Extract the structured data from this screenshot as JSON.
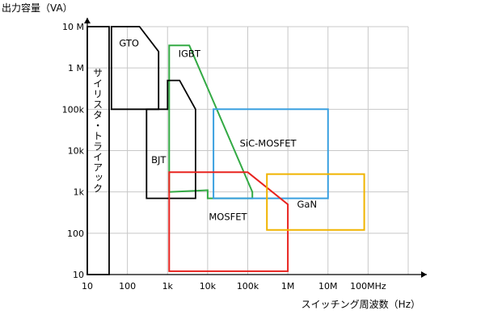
{
  "chart_data": {
    "type": "area",
    "ylabel": "出力容量（VA）",
    "xlabel": "スイッチング周波数（Hz）",
    "x_scale": "log",
    "y_scale": "log",
    "xlim": [
      10,
      1000000000
    ],
    "ylim": [
      10,
      10000000
    ],
    "grid": true,
    "x_ticks": [
      {
        "value": 10,
        "label": "10"
      },
      {
        "value": 100,
        "label": "100"
      },
      {
        "value": 1000,
        "label": "1k"
      },
      {
        "value": 10000,
        "label": "10k"
      },
      {
        "value": 100000,
        "label": "100k"
      },
      {
        "value": 1000000,
        "label": "1M"
      },
      {
        "value": 10000000,
        "label": "10M"
      },
      {
        "value": 100000000,
        "label": "100MHz"
      }
    ],
    "y_ticks": [
      {
        "value": 10,
        "label": "10"
      },
      {
        "value": 100,
        "label": "100"
      },
      {
        "value": 1000,
        "label": "1k"
      },
      {
        "value": 10000,
        "label": "10k"
      },
      {
        "value": 100000,
        "label": "100k"
      },
      {
        "value": 1000000,
        "label": "1 M"
      },
      {
        "value": 10000000,
        "label": "10 M"
      }
    ],
    "regions": [
      {
        "key": "thyristor",
        "name": "サイリスタ・トライアック",
        "color": "#000000",
        "points": [
          [
            10,
            10
          ],
          [
            10,
            10000000
          ],
          [
            35,
            10000000
          ],
          [
            35,
            10
          ]
        ],
        "label_pos": [
          18,
          30000
        ],
        "vertical": true
      },
      {
        "key": "gto",
        "name": "GTO",
        "color": "#000000",
        "points": [
          [
            40,
            100000
          ],
          [
            40,
            10000000
          ],
          [
            200,
            10000000
          ],
          [
            600,
            2500000
          ],
          [
            600,
            100000
          ]
        ],
        "label_pos": [
          110,
          4000000
        ]
      },
      {
        "key": "igbt",
        "name": "IGBT",
        "color": "#33aa44",
        "points": [
          [
            1100,
            1000
          ],
          [
            1100,
            3500000
          ],
          [
            3500,
            3500000
          ],
          [
            130000,
            1000
          ],
          [
            130000,
            700
          ],
          [
            10000,
            700
          ],
          [
            10000,
            1100
          ]
        ],
        "label_pos": [
          3500,
          2200000
        ]
      },
      {
        "key": "bjt",
        "name": "BJT",
        "color": "#000000",
        "points": [
          [
            300,
            700
          ],
          [
            300,
            100000
          ],
          [
            1000,
            100000
          ],
          [
            1000,
            500000
          ],
          [
            2000,
            500000
          ],
          [
            5000,
            100000
          ],
          [
            5000,
            700
          ]
        ],
        "label_pos": [
          600,
          6000
        ]
      },
      {
        "key": "sic",
        "name": "SiC-MOSFET",
        "color": "#3aa0e0",
        "points": [
          [
            14000,
            700
          ],
          [
            14000,
            100000
          ],
          [
            10000000,
            100000
          ],
          [
            10000000,
            700
          ]
        ],
        "label_pos": [
          320000,
          15000
        ]
      },
      {
        "key": "mosfet",
        "name": "MOSFET",
        "color": "#e8231f",
        "points": [
          [
            1100,
            12
          ],
          [
            1100,
            3000
          ],
          [
            100000,
            3000
          ],
          [
            1000000,
            500
          ],
          [
            1000000,
            12
          ]
        ],
        "label_pos": [
          32000,
          250
        ]
      },
      {
        "key": "gan",
        "name": "GaN",
        "color": "#f0b400",
        "points": [
          [
            300000,
            120
          ],
          [
            300000,
            2700
          ],
          [
            80000000,
            2700
          ],
          [
            80000000,
            120
          ]
        ],
        "label_pos": [
          3000000,
          500
        ]
      }
    ]
  }
}
